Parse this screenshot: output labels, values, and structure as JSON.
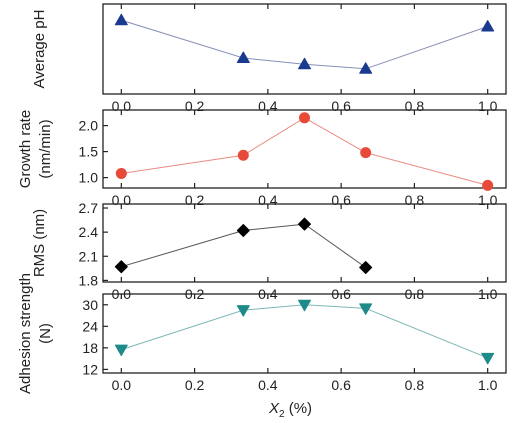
{
  "chart_data": [
    {
      "type": "line",
      "ylabel": [
        "Average pH"
      ],
      "x": [
        0.0,
        0.333,
        0.5,
        0.667,
        1.0
      ],
      "ylim": [
        0,
        1
      ],
      "yticks": [],
      "series": [
        {
          "values": [
            0.82,
            0.4,
            0.33,
            0.28,
            0.75
          ],
          "color": "#1a3a8f",
          "line_color": "#8890b8",
          "marker": "triangle-up"
        }
      ],
      "xlim": [
        -0.05,
        1.05
      ],
      "xticks": [
        "0.0",
        "0.2",
        "0.4",
        "0.6",
        "0.8",
        "1.0"
      ]
    },
    {
      "type": "line",
      "ylabel": [
        "Growth rate",
        "(nm/min)"
      ],
      "x": [
        0.0,
        0.333,
        0.5,
        0.667,
        1.0
      ],
      "ylim": [
        0.8,
        2.3
      ],
      "yticks": [
        1.0,
        1.5,
        2.0
      ],
      "yticklabels": [
        "1.0",
        "1.5",
        "2.0"
      ],
      "series": [
        {
          "values": [
            1.08,
            1.43,
            2.15,
            1.48,
            0.85
          ],
          "color": "#e84a3a",
          "line_color": "#e88a80",
          "marker": "circle"
        }
      ],
      "xlim": [
        -0.05,
        1.05
      ],
      "xticks": [
        "0.0",
        "0.2",
        "0.4",
        "0.6",
        "0.8",
        "1.0"
      ]
    },
    {
      "type": "line",
      "ylabel": [
        "RMS (nm)"
      ],
      "x": [
        0.0,
        0.333,
        0.5,
        0.667
      ],
      "ylim": [
        1.78,
        2.75
      ],
      "yticks": [
        1.8,
        2.1,
        2.4,
        2.7
      ],
      "yticklabels": [
        "1.8",
        "2.1",
        "2.4",
        "2.7"
      ],
      "series": [
        {
          "values": [
            1.97,
            2.42,
            2.5,
            1.96
          ],
          "color": "#000000",
          "line_color": "#555555",
          "marker": "diamond"
        }
      ],
      "xlim": [
        -0.05,
        1.05
      ],
      "xticks": [
        "0.0",
        "0.2",
        "0.4",
        "0.6",
        "0.8",
        "1.0"
      ]
    },
    {
      "type": "line",
      "ylabel": [
        "Adhesion strength",
        "(N)"
      ],
      "x": [
        0.0,
        0.333,
        0.5,
        0.667,
        1.0
      ],
      "ylim": [
        11,
        33
      ],
      "yticks": [
        12,
        18,
        24,
        30
      ],
      "yticklabels": [
        "12",
        "18",
        "24",
        "30"
      ],
      "series": [
        {
          "values": [
            17.5,
            28.5,
            30.0,
            29.0,
            15.2
          ],
          "color": "#1e8a8a",
          "line_color": "#7fb8b8",
          "marker": "triangle-down"
        }
      ],
      "xlim": [
        -0.05,
        1.05
      ],
      "xticks": [
        "0.0",
        "0.2",
        "0.4",
        "0.6",
        "0.8",
        "1.0"
      ],
      "xlabel": "X",
      "xlabel_sub": "2",
      "xlabel_unit": " (%)"
    }
  ]
}
